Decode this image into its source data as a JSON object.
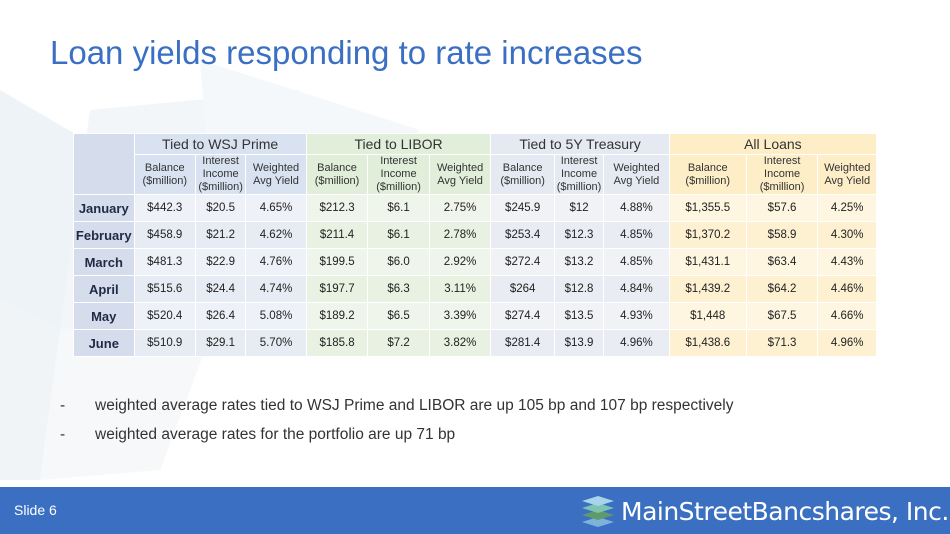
{
  "title": "Loan yields responding to rate increases",
  "colors": {
    "title": "#3a6fc4",
    "footer": "#3b6fc1",
    "wsj": "#d9e2f0",
    "libor": "#e0eeda",
    "treasury": "#e5e9f1",
    "all_loans": "#fdeec8"
  },
  "table": {
    "groups": [
      "Tied to WSJ Prime",
      "Tied to LIBOR",
      "Tied to 5Y Treasury",
      "All Loans"
    ],
    "subheaders": {
      "balance": "Balance ($million)",
      "income": "Interest Income ($million)",
      "yield": "Weighted Avg Yield"
    },
    "rows": [
      {
        "month": "January",
        "wsj": [
          "$442.3",
          "$20.5",
          "4.65%"
        ],
        "libor": [
          "$212.3",
          "$6.1",
          "2.75%"
        ],
        "treasury": [
          "$245.9",
          "$12",
          "4.88%"
        ],
        "all": [
          "$1,355.5",
          "$57.6",
          "4.25%"
        ]
      },
      {
        "month": "February",
        "wsj": [
          "$458.9",
          "$21.2",
          "4.62%"
        ],
        "libor": [
          "$211.4",
          "$6.1",
          "2.78%"
        ],
        "treasury": [
          "$253.4",
          "$12.3",
          "4.85%"
        ],
        "all": [
          "$1,370.2",
          "$58.9",
          "4.30%"
        ]
      },
      {
        "month": "March",
        "wsj": [
          "$481.3",
          "$22.9",
          "4.76%"
        ],
        "libor": [
          "$199.5",
          "$6.0",
          "2.92%"
        ],
        "treasury": [
          "$272.4",
          "$13.2",
          "4.85%"
        ],
        "all": [
          "$1,431.1",
          "$63.4",
          "4.43%"
        ]
      },
      {
        "month": "April",
        "wsj": [
          "$515.6",
          "$24.4",
          "4.74%"
        ],
        "libor": [
          "$197.7",
          "$6.3",
          "3.11%"
        ],
        "treasury": [
          "$264",
          "$12.8",
          "4.84%"
        ],
        "all": [
          "$1,439.2",
          "$64.2",
          "4.46%"
        ]
      },
      {
        "month": "May",
        "wsj": [
          "$520.4",
          "$26.4",
          "5.08%"
        ],
        "libor": [
          "$189.2",
          "$6.5",
          "3.39%"
        ],
        "treasury": [
          "$274.4",
          "$13.5",
          "4.93%"
        ],
        "all": [
          "$1,448",
          "$67.5",
          "4.66%"
        ]
      },
      {
        "month": "June",
        "wsj": [
          "$510.9",
          "$29.1",
          "5.70%"
        ],
        "libor": [
          "$185.8",
          "$7.2",
          "3.82%"
        ],
        "treasury": [
          "$281.4",
          "$13.9",
          "4.96%"
        ],
        "all": [
          "$1,438.6",
          "$71.3",
          "4.96%"
        ]
      }
    ]
  },
  "bullets": [
    "weighted average rates tied to WSJ Prime and LIBOR are up 105 bp and 107 bp respectively",
    "weighted average rates for the portfolio are up 71 bp"
  ],
  "bullet_marker": "-",
  "footer": {
    "slide_label": "Slide 6",
    "logo_text": "MainStreetBancshares, Inc.",
    "logo_icon": "layered-stack-icon"
  }
}
